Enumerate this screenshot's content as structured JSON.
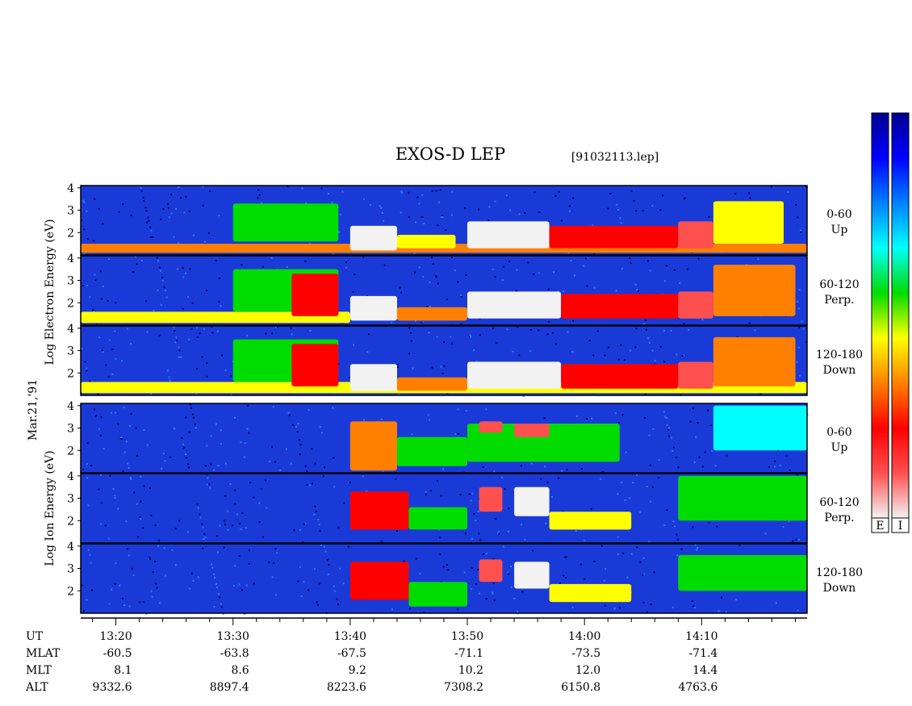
{
  "header": {
    "title": "EXOS-D LEP",
    "file": "[91032113.lep]"
  },
  "date_label": "Mar.21,'91",
  "colorbar": {
    "labels": [
      "E",
      "I"
    ],
    "stops": [
      "#f2f2f2",
      "#ff5050",
      "#ff0000",
      "#ff8000",
      "#ffff00",
      "#00dc00",
      "#00ffff",
      "#0080ff",
      "#0000ff",
      "#000090"
    ]
  },
  "groups": [
    {
      "name": "electron",
      "ylabel": "Log Electron Energy (eV)"
    },
    {
      "name": "ion",
      "ylabel": "Log Ion Energy (eV)"
    }
  ],
  "panels": [
    {
      "id": "e-up",
      "group": "electron",
      "line1": "0-60",
      "line2": "Up"
    },
    {
      "id": "e-perp",
      "group": "electron",
      "line1": "60-120",
      "line2": "Perp."
    },
    {
      "id": "e-down",
      "group": "electron",
      "line1": "120-180",
      "line2": "Down"
    },
    {
      "id": "i-up",
      "group": "ion",
      "line1": "0-60",
      "line2": "Up"
    },
    {
      "id": "i-perp",
      "group": "ion",
      "line1": "60-120",
      "line2": "Perp."
    },
    {
      "id": "i-down",
      "group": "ion",
      "line1": "120-180",
      "line2": "Down"
    }
  ],
  "footer": {
    "row_labels": [
      "UT",
      "MLAT",
      "MLT",
      "ALT"
    ],
    "ut": [
      "13:20",
      "13:30",
      "13:40",
      "13:50",
      "14:00",
      "14:10"
    ],
    "mlat": [
      "-60.5",
      "-63.8",
      "-67.5",
      "-71.1",
      "-73.5",
      "-71.4"
    ],
    "mlt": [
      "8.1",
      "8.6",
      "9.2",
      "10.2",
      "12.0",
      "14.4"
    ],
    "alt": [
      "9332.6",
      "8897.4",
      "8223.6",
      "7308.2",
      "6150.8",
      "4763.6"
    ]
  },
  "chart_data": {
    "type": "heatmap",
    "title": "EXOS-D LEP",
    "x_axis": "UT",
    "x_ticks": [
      "13:20",
      "13:30",
      "13:40",
      "13:50",
      "14:00",
      "14:10"
    ],
    "x_range": [
      "13:17",
      "14:19"
    ],
    "y_ticks": [
      2,
      3,
      4
    ],
    "y_range": [
      1,
      4.1
    ],
    "y_unit": "Log Energy (eV)",
    "series": [
      {
        "name": "0-60 Up",
        "species": "electron",
        "features": [
          {
            "t0": "13:17",
            "t1": "14:19",
            "e0": 1.1,
            "e1": 1.5,
            "level": 0.65
          },
          {
            "t0": "13:30",
            "t1": "13:39",
            "e0": 1.6,
            "e1": 3.3,
            "level": 0.45
          },
          {
            "t0": "13:40",
            "t1": "13:44",
            "e0": 1.2,
            "e1": 2.3,
            "level": 0.95
          },
          {
            "t0": "13:44",
            "t1": "13:49",
            "e0": 1.3,
            "e1": 1.9,
            "level": 0.6
          },
          {
            "t0": "13:50",
            "t1": "13:57",
            "e0": 1.3,
            "e1": 2.5,
            "level": 0.95
          },
          {
            "t0": "13:57",
            "t1": "14:08",
            "e0": 1.3,
            "e1": 2.3,
            "level": 0.75
          },
          {
            "t0": "14:08",
            "t1": "14:11",
            "e0": 1.3,
            "e1": 2.5,
            "level": 0.85
          },
          {
            "t0": "14:11",
            "t1": "14:17",
            "e0": 1.5,
            "e1": 3.4,
            "level": 0.55
          }
        ]
      },
      {
        "name": "60-120 Perp.",
        "species": "electron",
        "features": [
          {
            "t0": "13:17",
            "t1": "13:40",
            "e0": 1.1,
            "e1": 1.6,
            "level": 0.55
          },
          {
            "t0": "13:30",
            "t1": "13:39",
            "e0": 1.6,
            "e1": 3.5,
            "level": 0.5
          },
          {
            "t0": "13:35",
            "t1": "13:39",
            "e0": 1.4,
            "e1": 3.3,
            "level": 0.75
          },
          {
            "t0": "13:40",
            "t1": "13:44",
            "e0": 1.2,
            "e1": 2.3,
            "level": 0.95
          },
          {
            "t0": "13:44",
            "t1": "13:50",
            "e0": 1.2,
            "e1": 1.8,
            "level": 0.65
          },
          {
            "t0": "13:50",
            "t1": "13:58",
            "e0": 1.3,
            "e1": 2.5,
            "level": 0.95
          },
          {
            "t0": "13:58",
            "t1": "14:08",
            "e0": 1.3,
            "e1": 2.4,
            "level": 0.78
          },
          {
            "t0": "14:08",
            "t1": "14:11",
            "e0": 1.3,
            "e1": 2.5,
            "level": 0.88
          },
          {
            "t0": "14:11",
            "t1": "14:18",
            "e0": 1.4,
            "e1": 3.7,
            "level": 0.62
          }
        ]
      },
      {
        "name": "120-180 Down",
        "species": "electron",
        "features": [
          {
            "t0": "13:17",
            "t1": "14:19",
            "e0": 1.1,
            "e1": 1.6,
            "level": 0.6
          },
          {
            "t0": "13:30",
            "t1": "13:39",
            "e0": 1.6,
            "e1": 3.5,
            "level": 0.5
          },
          {
            "t0": "13:35",
            "t1": "13:39",
            "e0": 1.4,
            "e1": 3.3,
            "level": 0.75
          },
          {
            "t0": "13:40",
            "t1": "13:44",
            "e0": 1.2,
            "e1": 2.4,
            "level": 0.95
          },
          {
            "t0": "13:44",
            "t1": "13:50",
            "e0": 1.2,
            "e1": 1.8,
            "level": 0.65
          },
          {
            "t0": "13:50",
            "t1": "13:58",
            "e0": 1.3,
            "e1": 2.5,
            "level": 0.95
          },
          {
            "t0": "13:58",
            "t1": "14:08",
            "e0": 1.3,
            "e1": 2.4,
            "level": 0.78
          },
          {
            "t0": "14:08",
            "t1": "14:11",
            "e0": 1.3,
            "e1": 2.5,
            "level": 0.88
          },
          {
            "t0": "14:11",
            "t1": "14:18",
            "e0": 1.4,
            "e1": 3.6,
            "level": 0.62
          }
        ]
      },
      {
        "name": "0-60 Up",
        "species": "ion",
        "features": [
          {
            "t0": "13:40",
            "t1": "13:44",
            "e0": 1.1,
            "e1": 3.3,
            "level": 0.7
          },
          {
            "t0": "13:44",
            "t1": "13:50",
            "e0": 1.3,
            "e1": 2.6,
            "level": 0.5
          },
          {
            "t0": "13:50",
            "t1": "14:03",
            "e0": 1.5,
            "e1": 3.2,
            "level": 0.45
          },
          {
            "t0": "13:51",
            "t1": "13:53",
            "e0": 2.8,
            "e1": 3.3,
            "level": 0.85
          },
          {
            "t0": "13:54",
            "t1": "13:57",
            "e0": 2.6,
            "e1": 3.2,
            "level": 0.85
          },
          {
            "t0": "14:11",
            "t1": "14:19",
            "e0": 2.0,
            "e1": 4.0,
            "level": 0.3
          }
        ]
      },
      {
        "name": "60-120 Perp.",
        "species": "ion",
        "features": [
          {
            "t0": "13:40",
            "t1": "13:45",
            "e0": 1.6,
            "e1": 3.3,
            "level": 0.8
          },
          {
            "t0": "13:45",
            "t1": "13:50",
            "e0": 1.6,
            "e1": 2.6,
            "level": 0.5
          },
          {
            "t0": "13:51",
            "t1": "13:53",
            "e0": 2.4,
            "e1": 3.5,
            "level": 0.9
          },
          {
            "t0": "13:54",
            "t1": "13:57",
            "e0": 2.2,
            "e1": 3.5,
            "level": 0.95
          },
          {
            "t0": "13:57",
            "t1": "14:04",
            "e0": 1.6,
            "e1": 2.4,
            "level": 0.55
          },
          {
            "t0": "14:08",
            "t1": "14:19",
            "e0": 2.0,
            "e1": 4.0,
            "level": 0.4
          }
        ]
      },
      {
        "name": "120-180 Down",
        "species": "ion",
        "features": [
          {
            "t0": "13:40",
            "t1": "13:45",
            "e0": 1.6,
            "e1": 3.3,
            "level": 0.8
          },
          {
            "t0": "13:45",
            "t1": "13:50",
            "e0": 1.3,
            "e1": 2.4,
            "level": 0.5
          },
          {
            "t0": "13:51",
            "t1": "13:53",
            "e0": 2.4,
            "e1": 3.4,
            "level": 0.9
          },
          {
            "t0": "13:54",
            "t1": "13:57",
            "e0": 2.1,
            "e1": 3.3,
            "level": 0.95
          },
          {
            "t0": "13:57",
            "t1": "14:04",
            "e0": 1.5,
            "e1": 2.3,
            "level": 0.55
          },
          {
            "t0": "14:08",
            "t1": "14:19",
            "e0": 2.0,
            "e1": 3.6,
            "level": 0.4
          }
        ]
      }
    ]
  }
}
